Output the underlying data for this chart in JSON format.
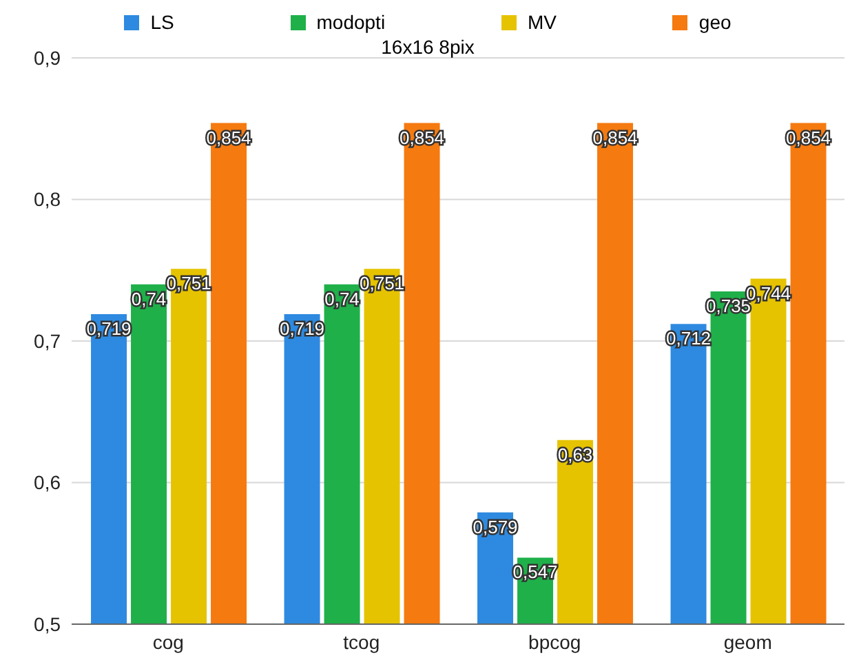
{
  "chart_data": {
    "type": "bar",
    "title": "16x16 8pix",
    "categories": [
      "cog",
      "tcog",
      "bpcog",
      "geom"
    ],
    "series": [
      {
        "name": "LS",
        "color": "#2e8ae0",
        "values": [
          0.719,
          0.719,
          0.579,
          0.712
        ],
        "value_labels": [
          "0,719",
          "0,719",
          "0,579",
          "0,712"
        ]
      },
      {
        "name": "modopti",
        "color": "#1fb04a",
        "values": [
          0.74,
          0.74,
          0.547,
          0.735
        ],
        "value_labels": [
          "0,74",
          "0,74",
          "0,547",
          "0,735"
        ]
      },
      {
        "name": "MV",
        "color": "#e6c300",
        "values": [
          0.751,
          0.751,
          0.63,
          0.744
        ],
        "value_labels": [
          "0,751",
          "0,751",
          "0,63",
          "0,744"
        ]
      },
      {
        "name": "geo",
        "color": "#f57a10",
        "values": [
          0.854,
          0.854,
          0.854,
          0.854
        ],
        "value_labels": [
          "0,854",
          "0,854",
          "0,854",
          "0,854"
        ]
      }
    ],
    "ylim": [
      0.5,
      0.9
    ],
    "yticks": [
      {
        "value": 0.5,
        "label": "0,5"
      },
      {
        "value": 0.6,
        "label": "0,6"
      },
      {
        "value": 0.7,
        "label": "0,7"
      },
      {
        "value": 0.8,
        "label": "0,8"
      },
      {
        "value": 0.9,
        "label": "0,9"
      }
    ],
    "grid": "y",
    "legend": "top"
  }
}
